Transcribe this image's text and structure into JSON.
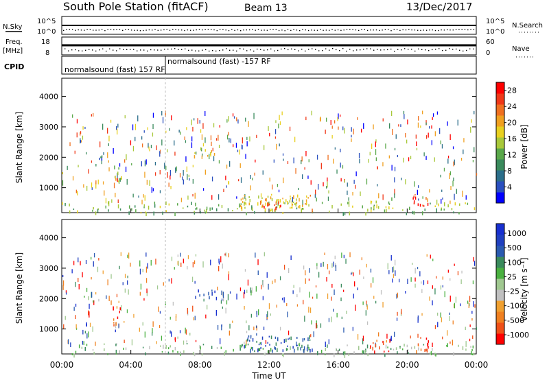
{
  "header": {
    "title": "South Pole Station (fitACF)",
    "beam": "Beam 13",
    "date": "13/Dec/2017"
  },
  "top_panels": {
    "nsky": {
      "label": "N.Sky",
      "left_ticks": [
        "10^5",
        "10^0"
      ]
    },
    "nsearch": {
      "label": "N.Search",
      "right_ticks": [
        "10^5",
        "10^0"
      ]
    },
    "freq": {
      "label_line1": "Freq.",
      "label_line2": "[MHz]",
      "left_ticks": [
        "18",
        "8"
      ]
    },
    "nave": {
      "label": "Nave",
      "right_ticks": [
        "60",
        "0"
      ]
    },
    "cpid": {
      "label": "CPID",
      "programs": [
        {
          "text": "normalsound (fast) 157 RF",
          "start_hour": 0
        },
        {
          "text": "normalsound (fast) -157 RF",
          "start_hour": 6
        }
      ]
    }
  },
  "chart_data": [
    {
      "type": "heatmap",
      "title": "Power",
      "xlabel": "",
      "ylabel": "Slant Range [km]",
      "xlim": [
        0,
        24
      ],
      "ylim": [
        180,
        4600
      ],
      "y_ticks": [
        1000,
        2000,
        3000,
        4000
      ],
      "colorbar": {
        "label": "Power [dB]",
        "ticks": [
          "4",
          "8",
          "12",
          "16",
          "20",
          "24",
          "28"
        ],
        "range": [
          0,
          30
        ],
        "colors": [
          "#0000ff",
          "#2a4fbf",
          "#2b6e8a",
          "#3a8a5c",
          "#5aa84a",
          "#a8c83a",
          "#e8d020",
          "#f0a020",
          "#f07020",
          "#f03818",
          "#ff0000"
        ]
      },
      "regions": [
        {
          "t": [
            0.0,
            24.0
          ],
          "r": [
            180,
            550
          ],
          "level": 0.45,
          "density": 0.35
        },
        {
          "t": [
            1.2,
            2.4
          ],
          "r": [
            1900,
            2100
          ],
          "level": 0.25,
          "density": 0.3
        },
        {
          "t": [
            2.9,
            3.6
          ],
          "r": [
            1150,
            1800
          ],
          "level": 0.55,
          "density": 0.5
        },
        {
          "t": [
            7.6,
            8.9
          ],
          "r": [
            2050,
            2350
          ],
          "level": 0.6,
          "density": 0.6
        },
        {
          "t": [
            10.2,
            14.5
          ],
          "r": [
            300,
            800
          ],
          "level": 0.62,
          "density": 0.75
        },
        {
          "t": [
            11.5,
            13.0
          ],
          "r": [
            350,
            550
          ],
          "level": 0.9,
          "density": 0.8
        },
        {
          "t": [
            17.8,
            19.2
          ],
          "r": [
            280,
            700
          ],
          "level": 0.5,
          "density": 0.6
        },
        {
          "t": [
            20.3,
            21.2
          ],
          "r": [
            300,
            800
          ],
          "level": 0.85,
          "density": 0.7
        }
      ]
    },
    {
      "type": "heatmap",
      "title": "Velocity",
      "xlabel": "Time UT",
      "ylabel": "Slant Range [km]",
      "xlim": [
        0,
        24
      ],
      "ylim": [
        180,
        4600
      ],
      "x_ticks": [
        "00:00",
        "04:00",
        "08:00",
        "12:00",
        "16:00",
        "20:00",
        "00:00"
      ],
      "y_ticks": [
        1000,
        2000,
        3000,
        4000
      ],
      "colorbar": {
        "label": "Velocity [m s⁻¹]",
        "ticks": [
          "1000",
          "500",
          "100",
          "25",
          "-25",
          "-100",
          "-500",
          "-1000"
        ],
        "range": [
          -1000,
          1000
        ],
        "colors": [
          "#ff0000",
          "#f05018",
          "#f08020",
          "#f0a030",
          "#c0c0c0",
          "#a0c890",
          "#4ab040",
          "#3a8a5c",
          "#2a5ab0",
          "#2040c0",
          "#1830d0"
        ]
      },
      "regions": [
        {
          "t": [
            0.0,
            24.0
          ],
          "r": [
            180,
            550
          ],
          "level": 0.55,
          "density": 0.35
        },
        {
          "t": [
            1.2,
            2.4
          ],
          "r": [
            1900,
            2100
          ],
          "level": 0.5,
          "density": 0.3
        },
        {
          "t": [
            2.9,
            3.6
          ],
          "r": [
            1150,
            1800
          ],
          "level": 0.2,
          "density": 0.5
        },
        {
          "t": [
            7.6,
            8.9
          ],
          "r": [
            2050,
            2350
          ],
          "level": 0.82,
          "density": 0.6
        },
        {
          "t": [
            10.2,
            14.5
          ],
          "r": [
            300,
            800
          ],
          "level": 0.72,
          "density": 0.75
        },
        {
          "t": [
            17.8,
            19.2
          ],
          "r": [
            280,
            700
          ],
          "level": 0.15,
          "density": 0.6
        },
        {
          "t": [
            20.3,
            21.2
          ],
          "r": [
            300,
            800
          ],
          "level": 0.15,
          "density": 0.7
        }
      ]
    }
  ]
}
